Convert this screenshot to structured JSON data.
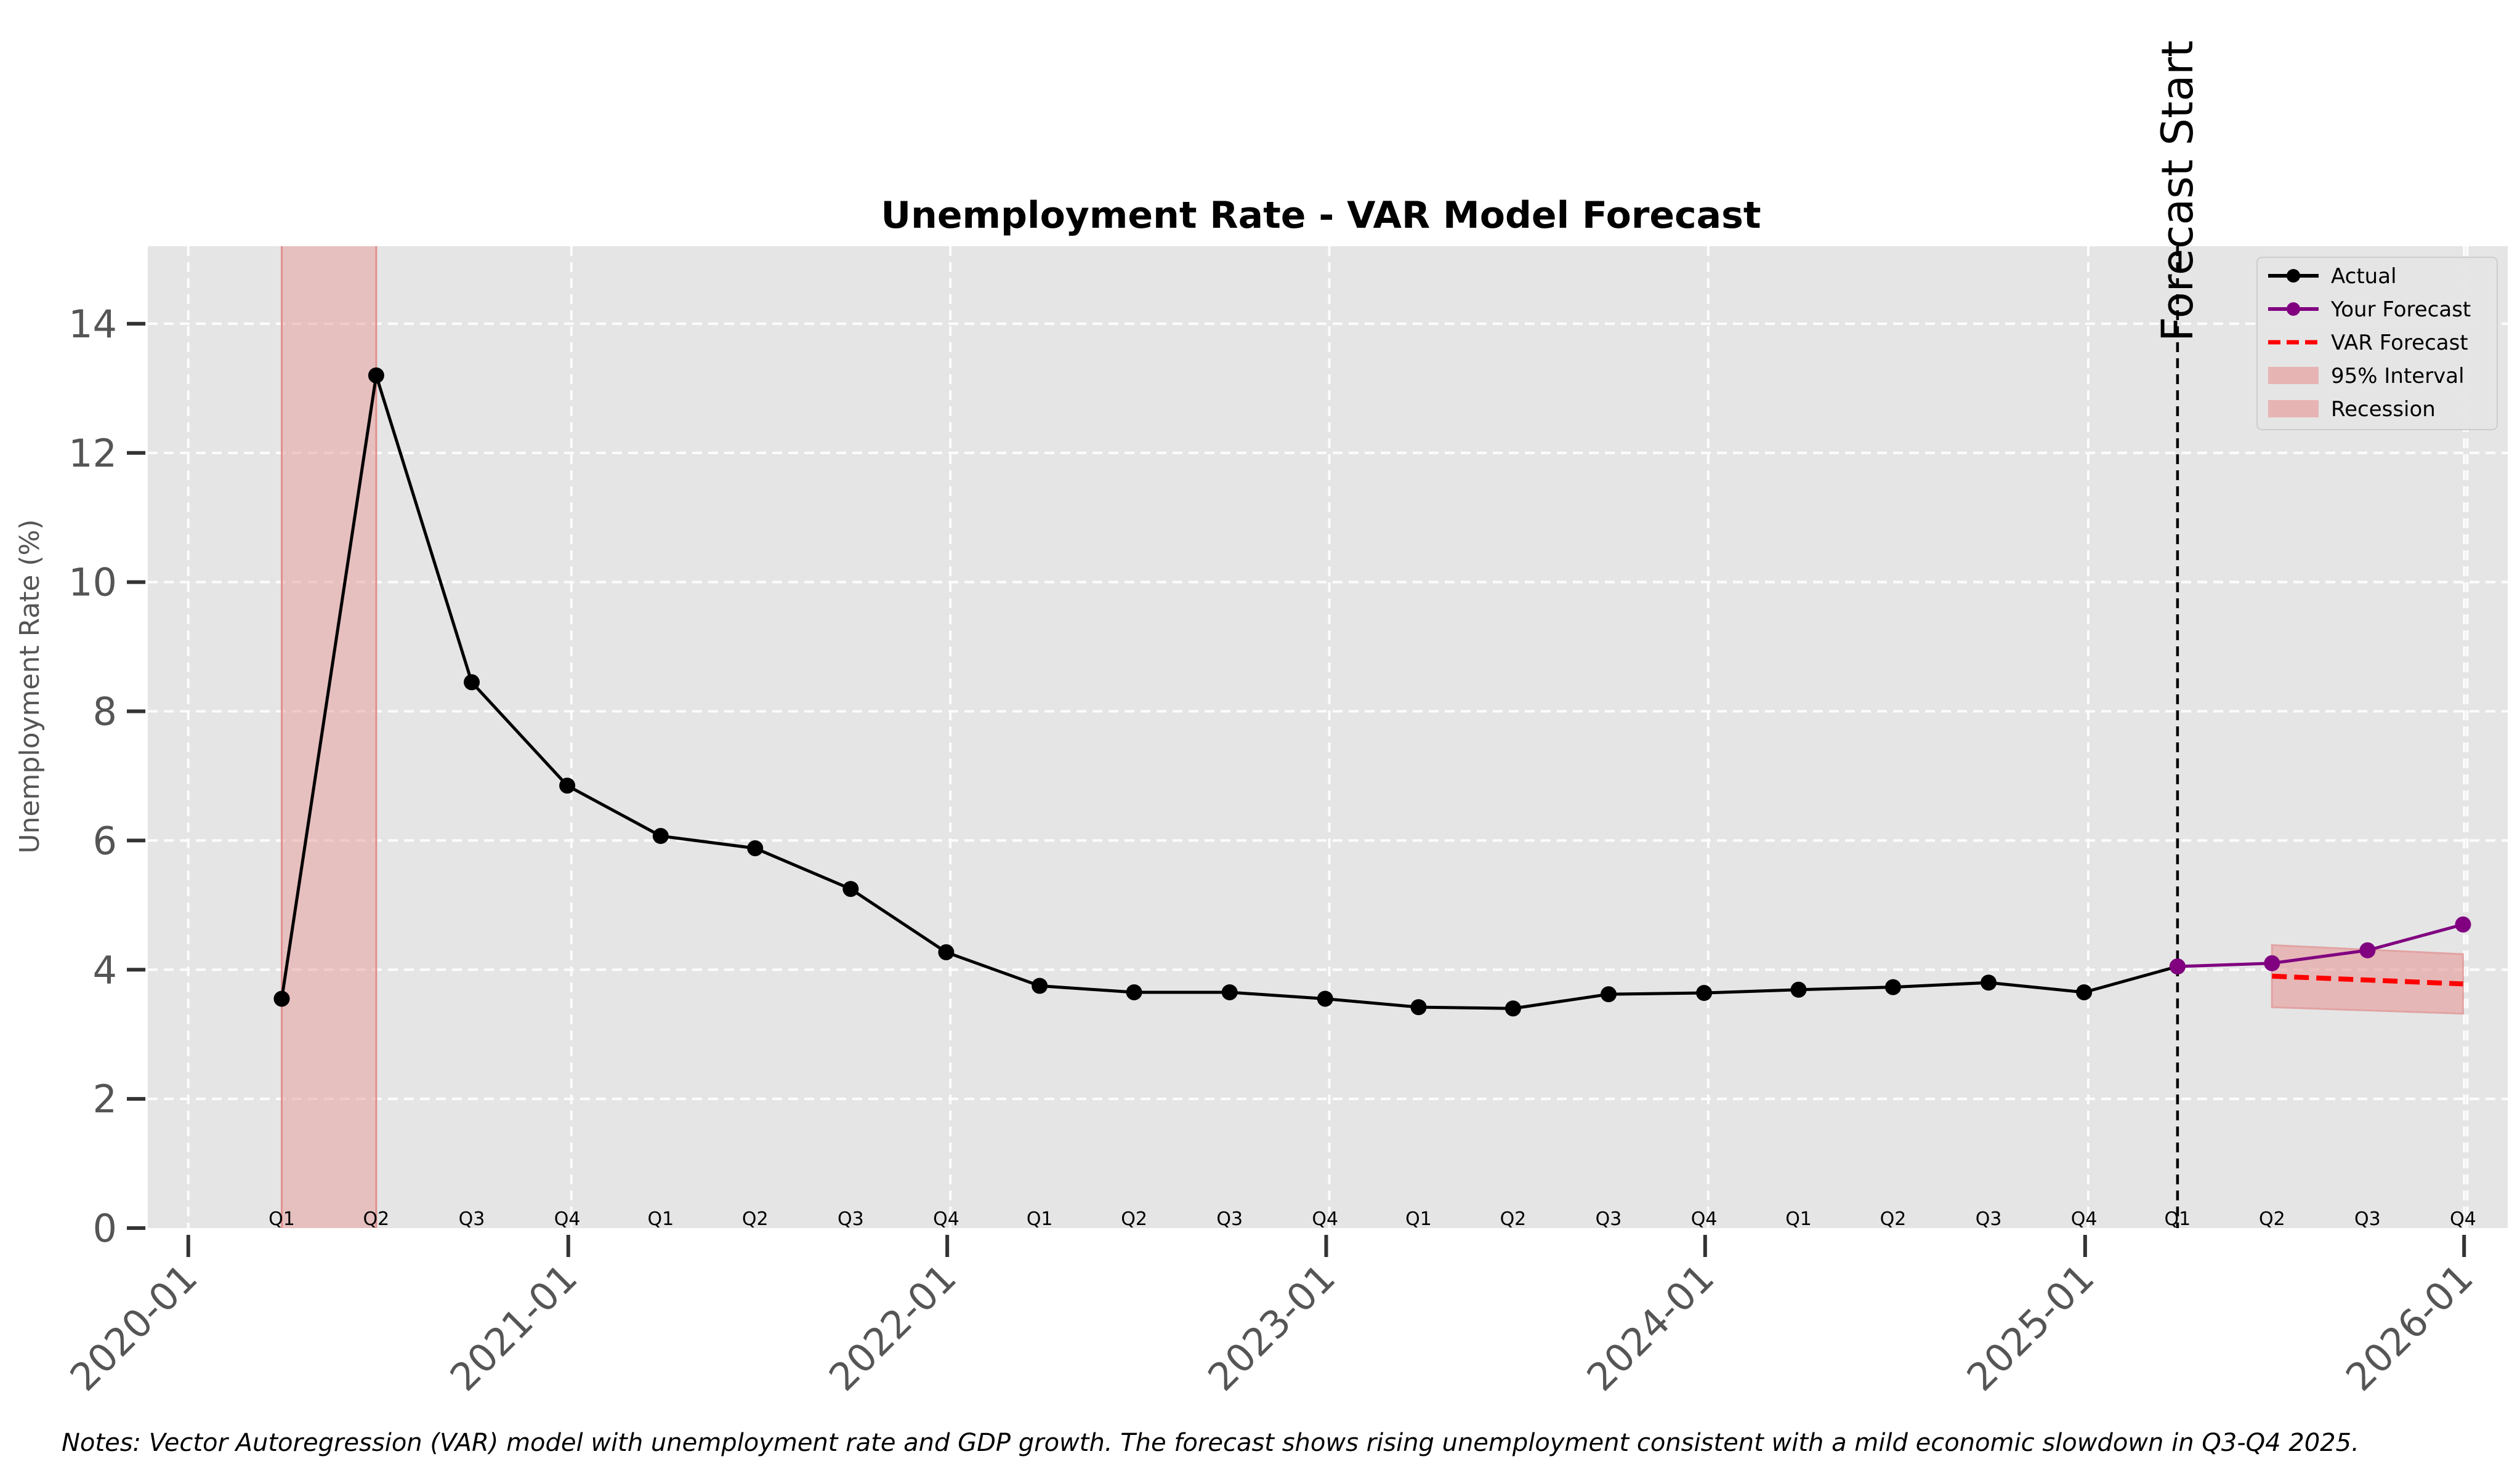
{
  "chart_data": {
    "type": "line",
    "title": "Unemployment Rate - VAR Model Forecast",
    "xlabel": "",
    "ylabel": "Unemployment Rate (%)",
    "ylim": [
      0,
      15.2
    ],
    "yticks": [
      0,
      2,
      4,
      6,
      8,
      10,
      12,
      14
    ],
    "xlim": [
      "2019-11-23",
      "2026-02-12"
    ],
    "year_ticks": [
      "2020-01",
      "2021-01",
      "2022-01",
      "2023-01",
      "2024-01",
      "2025-01",
      "2026-01"
    ],
    "quarter_labels": [
      {
        "date": "2020-03-31",
        "label": "Q1"
      },
      {
        "date": "2020-06-30",
        "label": "Q2"
      },
      {
        "date": "2020-09-30",
        "label": "Q3"
      },
      {
        "date": "2020-12-31",
        "label": "Q4"
      },
      {
        "date": "2021-03-31",
        "label": "Q1"
      },
      {
        "date": "2021-06-30",
        "label": "Q2"
      },
      {
        "date": "2021-09-30",
        "label": "Q3"
      },
      {
        "date": "2021-12-31",
        "label": "Q4"
      },
      {
        "date": "2022-03-31",
        "label": "Q1"
      },
      {
        "date": "2022-06-30",
        "label": "Q2"
      },
      {
        "date": "2022-09-30",
        "label": "Q3"
      },
      {
        "date": "2022-12-31",
        "label": "Q4"
      },
      {
        "date": "2023-03-31",
        "label": "Q1"
      },
      {
        "date": "2023-06-30",
        "label": "Q2"
      },
      {
        "date": "2023-09-30",
        "label": "Q3"
      },
      {
        "date": "2023-12-31",
        "label": "Q4"
      },
      {
        "date": "2024-03-31",
        "label": "Q1"
      },
      {
        "date": "2024-06-30",
        "label": "Q2"
      },
      {
        "date": "2024-09-30",
        "label": "Q3"
      },
      {
        "date": "2024-12-31",
        "label": "Q4"
      },
      {
        "date": "2025-03-31",
        "label": "Q1"
      },
      {
        "date": "2025-06-30",
        "label": "Q2"
      },
      {
        "date": "2025-09-30",
        "label": "Q3"
      },
      {
        "date": "2025-12-31",
        "label": "Q4"
      }
    ],
    "series": [
      {
        "name": "Actual",
        "color": "#000000",
        "style": "solid-markers",
        "points": [
          {
            "x": "2020-03-31",
            "y": 3.55
          },
          {
            "x": "2020-06-30",
            "y": 13.2
          },
          {
            "x": "2020-09-30",
            "y": 8.45
          },
          {
            "x": "2020-12-31",
            "y": 6.85
          },
          {
            "x": "2021-03-31",
            "y": 6.07
          },
          {
            "x": "2021-06-30",
            "y": 5.88
          },
          {
            "x": "2021-09-30",
            "y": 5.25
          },
          {
            "x": "2021-12-31",
            "y": 4.27
          },
          {
            "x": "2022-03-31",
            "y": 3.75
          },
          {
            "x": "2022-06-30",
            "y": 3.65
          },
          {
            "x": "2022-09-30",
            "y": 3.65
          },
          {
            "x": "2022-12-31",
            "y": 3.55
          },
          {
            "x": "2023-03-31",
            "y": 3.42
          },
          {
            "x": "2023-06-30",
            "y": 3.4
          },
          {
            "x": "2023-09-30",
            "y": 3.62
          },
          {
            "x": "2023-12-31",
            "y": 3.64
          },
          {
            "x": "2024-03-31",
            "y": 3.69
          },
          {
            "x": "2024-06-30",
            "y": 3.73
          },
          {
            "x": "2024-09-30",
            "y": 3.8
          },
          {
            "x": "2024-12-31",
            "y": 3.65
          },
          {
            "x": "2025-03-31",
            "y": 4.05
          }
        ]
      },
      {
        "name": "Your Forecast",
        "color": "#800080",
        "style": "solid-markers",
        "points": [
          {
            "x": "2025-03-31",
            "y": 4.05
          },
          {
            "x": "2025-06-30",
            "y": 4.1
          },
          {
            "x": "2025-09-30",
            "y": 4.3
          },
          {
            "x": "2025-12-31",
            "y": 4.7
          }
        ]
      },
      {
        "name": "VAR Forecast",
        "color": "#ff0000",
        "style": "dashed",
        "points": [
          {
            "x": "2025-06-30",
            "y": 3.9
          },
          {
            "x": "2025-09-30",
            "y": 3.84
          },
          {
            "x": "2025-12-31",
            "y": 3.78
          }
        ]
      }
    ],
    "interval": {
      "name": "95% Interval",
      "color": "#e8a0a0",
      "x": [
        "2025-06-30",
        "2025-09-30",
        "2025-12-31"
      ],
      "lower": [
        3.42,
        3.37,
        3.32
      ],
      "upper": [
        4.38,
        4.31,
        4.24
      ]
    },
    "recession": {
      "name": "Recession",
      "color": "#e8a0a0",
      "start": "2020-03-31",
      "end": "2020-06-30"
    },
    "forecast_start": {
      "label": "Forecast Start",
      "date": "2025-03-31"
    },
    "legend_placement": "top-right",
    "grid": true,
    "background_color": "#e5e5e5"
  },
  "notes": "Notes: Vector Autoregression (VAR) model with unemployment rate and GDP growth. The forecast shows rising unemployment consistent with a mild economic slowdown in Q3-Q4 2025."
}
